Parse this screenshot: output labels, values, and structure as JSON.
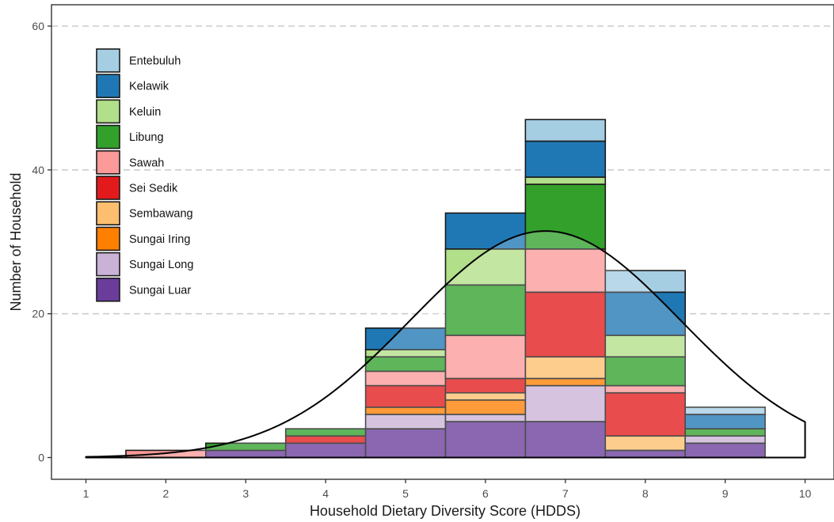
{
  "chart_data": {
    "type": "bar",
    "stacked": true,
    "xlabel": "Household Dietary Diversity Score (HDDS)",
    "ylabel": "Number of Household",
    "x_ticks": [
      1,
      2,
      3,
      4,
      5,
      6,
      7,
      8,
      9,
      10
    ],
    "y_ticks": [
      0,
      20,
      40,
      60
    ],
    "xlim": [
      0.55,
      10.4
    ],
    "ylim": [
      -3,
      63
    ],
    "grid": "horizontal dashed at major y ticks",
    "legend_position": "top-left",
    "categories": [
      2,
      3,
      4,
      5,
      6,
      7,
      8,
      9
    ],
    "series": [
      {
        "name": "Sungai Luar",
        "color": "#6a3d9a",
        "values": [
          0,
          1,
          2,
          4,
          5,
          5,
          1,
          2
        ]
      },
      {
        "name": "Sungai Long",
        "color": "#cab2d6",
        "values": [
          0,
          0,
          0,
          2,
          1,
          5,
          0,
          1
        ]
      },
      {
        "name": "Sungai Iring",
        "color": "#ff7f00",
        "values": [
          0,
          0,
          0,
          1,
          2,
          1,
          0,
          0
        ]
      },
      {
        "name": "Sembawang",
        "color": "#fdbf6f",
        "values": [
          0,
          0,
          0,
          0,
          1,
          3,
          2,
          0
        ]
      },
      {
        "name": "Sei Sedik",
        "color": "#e31a1c",
        "values": [
          0,
          0,
          1,
          3,
          2,
          9,
          6,
          0
        ]
      },
      {
        "name": "Sawah",
        "color": "#fb9a99",
        "values": [
          1,
          0,
          0,
          2,
          6,
          6,
          1,
          0
        ]
      },
      {
        "name": "Libung",
        "color": "#33a02c",
        "values": [
          0,
          1,
          1,
          2,
          7,
          9,
          4,
          1
        ]
      },
      {
        "name": "Keluin",
        "color": "#b2df8a",
        "values": [
          0,
          0,
          0,
          1,
          5,
          1,
          3,
          0
        ]
      },
      {
        "name": "Kelawik",
        "color": "#1f78b4",
        "values": [
          0,
          0,
          0,
          3,
          5,
          5,
          6,
          2
        ]
      },
      {
        "name": "Entebuluh",
        "color": "#a6cee3",
        "values": [
          0,
          0,
          0,
          0,
          0,
          3,
          3,
          1
        ]
      }
    ],
    "legend_order": [
      "Entebuluh",
      "Kelawik",
      "Keluin",
      "Libung",
      "Sawah",
      "Sei Sedik",
      "Sembawang",
      "Sungai Iring",
      "Sungai Long",
      "Sungai Luar"
    ],
    "density_curve": {
      "type": "normal",
      "mean": 6.75,
      "sd": 1.69,
      "peak": 31.5,
      "x_range": [
        1,
        10
      ]
    }
  }
}
